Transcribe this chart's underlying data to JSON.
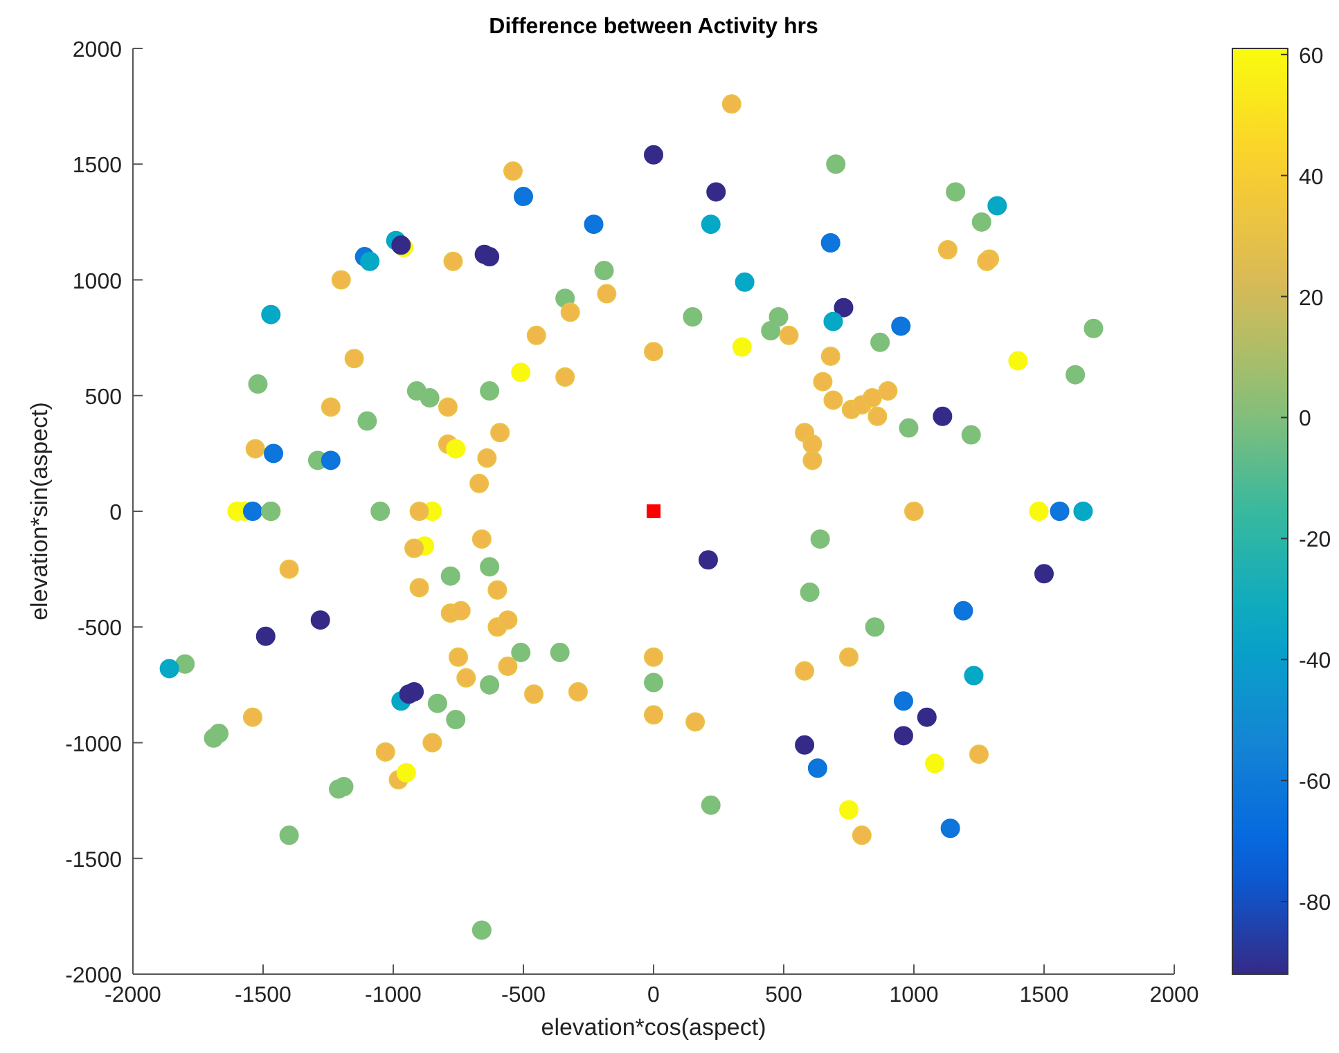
{
  "chart_data": {
    "type": "scatter",
    "title": "Difference between Activity hrs",
    "xlabel": "elevation*cos(aspect)",
    "ylabel": "elevation*sin(aspect)",
    "xlim": [
      -2000,
      2000
    ],
    "ylim": [
      -2000,
      2000
    ],
    "xticks": [
      -2000,
      -1500,
      -1000,
      -500,
      0,
      500,
      1000,
      1500,
      2000
    ],
    "yticks": [
      -2000,
      -1500,
      -1000,
      -500,
      0,
      500,
      1000,
      1500,
      2000
    ],
    "clim": [
      -92,
      61
    ],
    "cticks": [
      -80,
      -60,
      -40,
      -20,
      0,
      20,
      40,
      60
    ],
    "series": [
      {
        "type": "scatter",
        "marker": "circle",
        "x": [
          -540,
          -500,
          -230,
          -990,
          -960,
          -970,
          -650,
          -630,
          -1110,
          -1090,
          -770,
          -1200,
          -190,
          -180,
          -340,
          -320,
          -450,
          -1470,
          0,
          -510,
          -340,
          -1150,
          -1520,
          -910,
          -860,
          -630,
          -1240,
          -790,
          -1100,
          -590,
          -790,
          -760,
          -640,
          -1530,
          -1460,
          -1290,
          -1240,
          -670,
          -1600,
          -1570,
          -1540,
          -1470,
          -1470,
          -1050,
          -850,
          -900,
          -660,
          -880,
          -920,
          -1400,
          -630,
          -780,
          -900,
          -600,
          -780,
          -740,
          -1280,
          -600,
          -560,
          -1490,
          -1800,
          -1860,
          -510,
          -360,
          -750,
          -560,
          -720,
          -630,
          -460,
          -290,
          -970,
          -940,
          -920,
          -830,
          -760,
          -1540,
          -1690,
          -1670,
          -850,
          -1030,
          -980,
          -950,
          -1210,
          -1190,
          -1400,
          -660,
          0,
          0,
          0,
          300,
          0,
          700,
          240,
          1160,
          1320,
          1260,
          220,
          680,
          1130,
          1290,
          1280,
          350,
          730,
          150,
          480,
          450,
          690,
          520,
          950,
          870,
          1690,
          340,
          1400,
          1620,
          680,
          650,
          900,
          690,
          760,
          800,
          840,
          860,
          1110,
          980,
          1220,
          580,
          610,
          610,
          1000,
          1480,
          1560,
          1650,
          640,
          210,
          600,
          1500,
          1190,
          850,
          750,
          580,
          1230,
          960,
          1050,
          960,
          160,
          580,
          630,
          1250,
          1080,
          220,
          750,
          800,
          1140
        ],
        "values": [
          1470,
          1360,
          1240,
          1170,
          1140,
          1150,
          1110,
          1100,
          1100,
          1080,
          1080,
          1000,
          1040,
          940,
          920,
          860,
          760,
          850,
          690,
          600,
          580,
          660,
          550,
          520,
          490,
          520,
          450,
          450,
          390,
          340,
          290,
          270,
          230,
          270,
          250,
          220,
          220,
          120,
          0,
          0,
          0,
          0,
          0,
          0,
          0,
          0,
          -120,
          -150,
          -160,
          -250,
          -240,
          -280,
          -330,
          -340,
          -440,
          -430,
          -470,
          -500,
          -470,
          -540,
          -660,
          -680,
          -610,
          -610,
          -630,
          -670,
          -720,
          -750,
          -790,
          -780,
          -820,
          -790,
          -780,
          -830,
          -900,
          -890,
          -980,
          -960,
          -1000,
          -1040,
          -1160,
          -1130,
          -1200,
          -1190,
          -1400,
          -1810,
          -630,
          -740,
          -880,
          1760,
          1540,
          1500,
          1380,
          1380,
          1320,
          1250,
          1240,
          1160,
          1130,
          1090,
          1080,
          990,
          880,
          840,
          840,
          780,
          820,
          760,
          800,
          730,
          790,
          710,
          650,
          590,
          670,
          560,
          520,
          480,
          440,
          460,
          490,
          410,
          410,
          360,
          330,
          340,
          290,
          220,
          0,
          0,
          0,
          0,
          -120,
          -210,
          -350,
          -270,
          -430,
          -500,
          -630,
          -690,
          -710,
          -820,
          -890,
          -970,
          -910,
          -1010,
          -1110,
          -1050,
          -1090,
          -1270,
          -1290,
          -1400,
          -1370
        ],
        "cvalues": [
          31,
          -63,
          -63,
          -35,
          60,
          -91,
          -91,
          -91,
          -63,
          -35,
          31,
          31,
          0,
          31,
          0,
          31,
          31,
          -35,
          31,
          60,
          31,
          31,
          0,
          0,
          0,
          0,
          31,
          31,
          0,
          31,
          31,
          60,
          31,
          31,
          -63,
          0,
          -63,
          31,
          60,
          60,
          -63,
          31,
          0,
          0,
          60,
          31,
          31,
          60,
          31,
          31,
          0,
          0,
          31,
          31,
          31,
          31,
          -91,
          31,
          31,
          -91,
          0,
          -35,
          0,
          0,
          31,
          31,
          31,
          0,
          31,
          31,
          -35,
          -91,
          -91,
          0,
          0,
          31,
          0,
          0,
          31,
          31,
          31,
          60,
          0,
          0,
          0,
          0,
          31,
          0,
          31,
          31,
          -91,
          0,
          -91,
          0,
          -35,
          0,
          -35,
          -63,
          31,
          31,
          31,
          -35,
          -91,
          0,
          0,
          0,
          -35,
          31,
          -63,
          0,
          0,
          60,
          60,
          0,
          31,
          31,
          31,
          31,
          31,
          31,
          31,
          31,
          -91,
          0,
          0,
          31,
          31,
          31,
          31,
          60,
          -63,
          -35,
          0,
          -91,
          0,
          -91,
          -63,
          0,
          31,
          31,
          -35,
          -63,
          -91,
          -91,
          31,
          -91,
          -63,
          31,
          60,
          0,
          60,
          31,
          -63
        ],
        "colors": [
          "#f0b84b",
          "#0d75dc",
          "#0d75dc",
          "#05a9c5",
          "#f9f90e",
          "#352a87",
          "#352a87",
          "#352a87",
          "#0d75dc",
          "#05a9c5",
          "#f0b84b",
          "#f0b84b",
          "#7dc07a",
          "#f0b84b",
          "#7dc07a",
          "#f0b84b",
          "#f0b84b",
          "#05a9c5",
          "#f0b84b",
          "#f9f90e",
          "#f0b84b",
          "#f0b84b",
          "#7dc07a",
          "#7dc07a",
          "#7dc07a",
          "#7dc07a",
          "#f0b84b",
          "#f0b84b",
          "#7dc07a",
          "#f0b84b",
          "#f0b84b",
          "#f9f90e",
          "#f0b84b",
          "#f0b84b",
          "#0d75dc",
          "#7dc07a",
          "#0d75dc",
          "#f0b84b",
          "#f9f90e",
          "#f9f90e",
          "#0d75dc",
          "#f0b84b",
          "#7dc07a",
          "#7dc07a",
          "#f9f90e",
          "#f0b84b",
          "#f0b84b",
          "#f9f90e",
          "#f0b84b",
          "#f0b84b",
          "#7dc07a",
          "#7dc07a",
          "#f0b84b",
          "#f0b84b",
          "#f0b84b",
          "#f0b84b",
          "#352a87",
          "#f0b84b",
          "#f0b84b",
          "#352a87",
          "#7dc07a",
          "#05a9c5",
          "#7dc07a",
          "#7dc07a",
          "#f0b84b",
          "#f0b84b",
          "#f0b84b",
          "#7dc07a",
          "#f0b84b",
          "#f0b84b",
          "#05a9c5",
          "#352a87",
          "#352a87",
          "#7dc07a",
          "#7dc07a",
          "#f0b84b",
          "#7dc07a",
          "#7dc07a",
          "#f0b84b",
          "#f0b84b",
          "#f0b84b",
          "#f9f90e",
          "#7dc07a",
          "#7dc07a",
          "#7dc07a",
          "#7dc07a",
          "#f0b84b",
          "#7dc07a",
          "#f0b84b",
          "#f0b84b",
          "#352a87",
          "#7dc07a",
          "#352a87",
          "#7dc07a",
          "#05a9c5",
          "#7dc07a",
          "#05a9c5",
          "#0d75dc",
          "#f0b84b",
          "#f0b84b",
          "#f0b84b",
          "#05a9c5",
          "#352a87",
          "#7dc07a",
          "#7dc07a",
          "#7dc07a",
          "#05a9c5",
          "#f0b84b",
          "#0d75dc",
          "#7dc07a",
          "#7dc07a",
          "#f9f90e",
          "#f9f90e",
          "#7dc07a",
          "#f0b84b",
          "#f0b84b",
          "#f0b84b",
          "#f0b84b",
          "#f0b84b",
          "#f0b84b",
          "#f0b84b",
          "#f0b84b",
          "#352a87",
          "#7dc07a",
          "#7dc07a",
          "#f0b84b",
          "#f0b84b",
          "#f0b84b",
          "#f0b84b",
          "#f9f90e",
          "#0d75dc",
          "#05a9c5",
          "#7dc07a",
          "#352a87",
          "#7dc07a",
          "#352a87",
          "#0d75dc",
          "#7dc07a",
          "#f0b84b",
          "#f0b84b",
          "#05a9c5",
          "#0d75dc",
          "#352a87",
          "#352a87",
          "#f0b84b",
          "#352a87",
          "#0d75dc",
          "#f0b84b",
          "#f9f90e",
          "#7dc07a",
          "#f9f90e",
          "#f0b84b",
          "#0d75dc"
        ]
      },
      {
        "type": "scatter",
        "marker": "square",
        "color": "#ff0000",
        "x": [
          0
        ],
        "values": [
          0
        ]
      }
    ]
  }
}
